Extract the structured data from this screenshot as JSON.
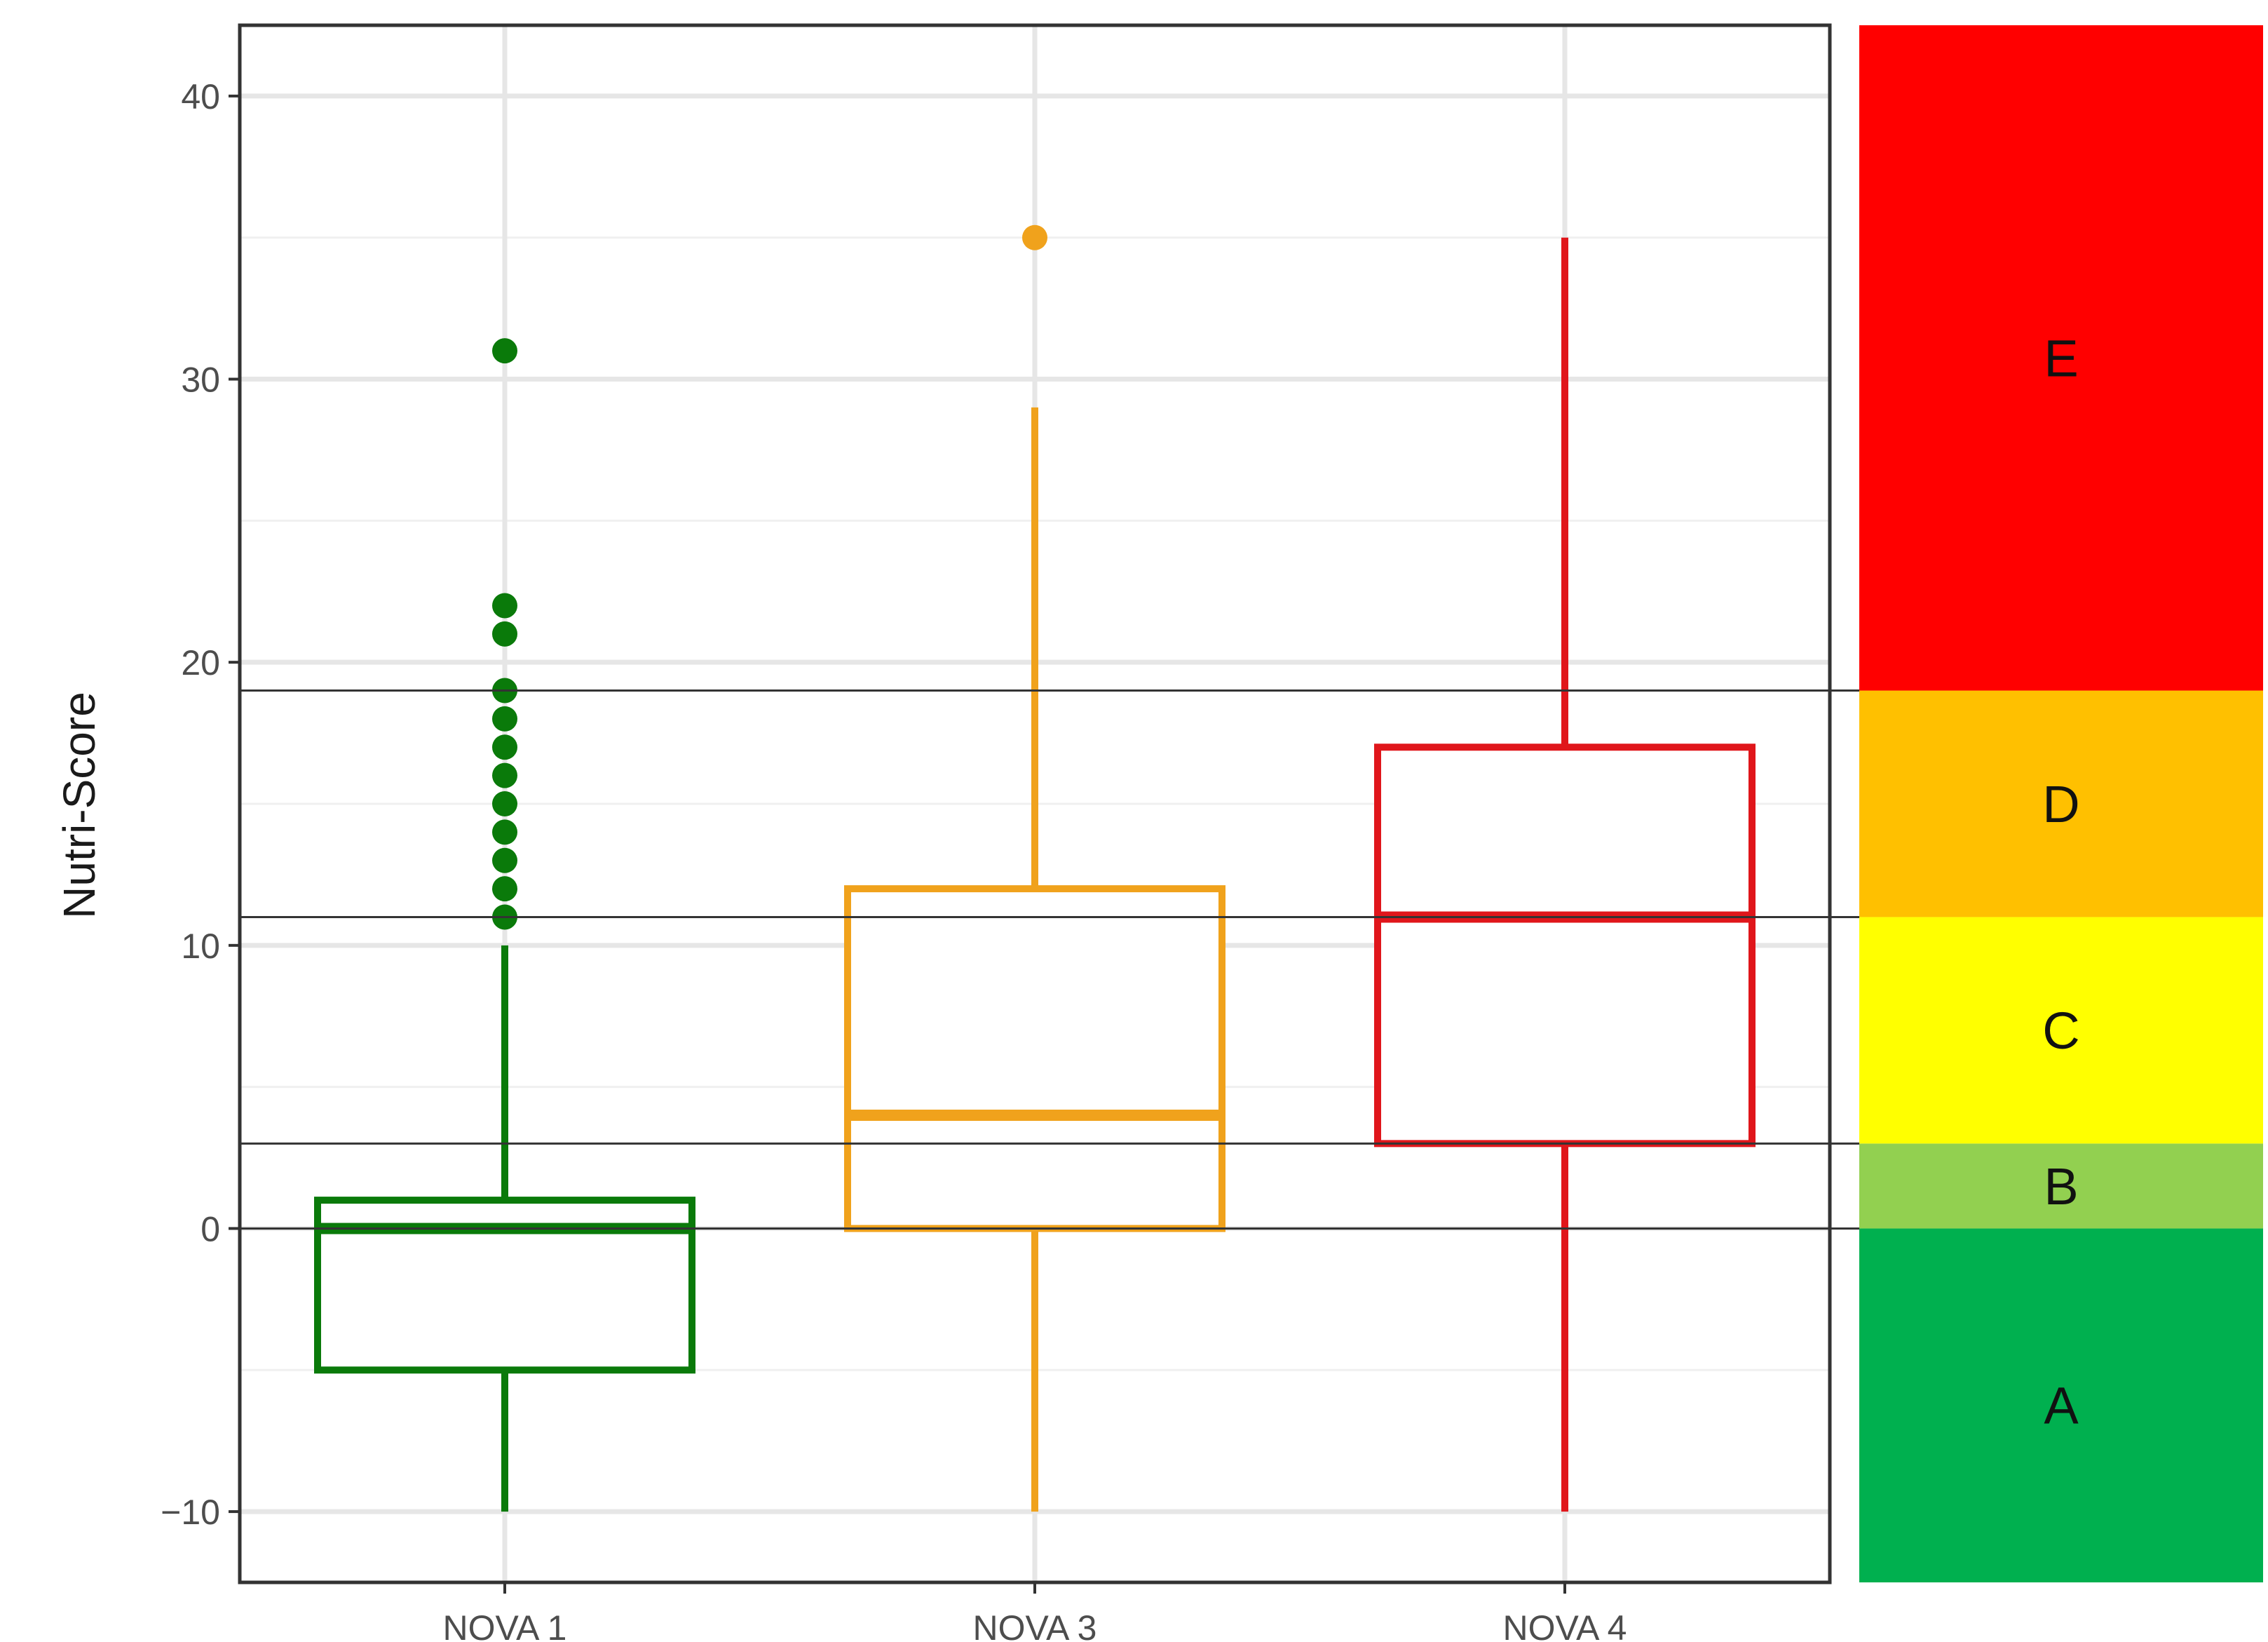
{
  "chart_data": {
    "type": "box",
    "ylabel": "Nutri-Score",
    "xlabel": "",
    "title": "",
    "ylim": [
      -12.5,
      42.5
    ],
    "yticks": [
      -10,
      0,
      10,
      20,
      30,
      40
    ],
    "ytick_labels": [
      "−10",
      "0",
      "10",
      "20",
      "30",
      "40"
    ],
    "grid": true,
    "categories": [
      "NOVA 1",
      "NOVA 3",
      "NOVA 4"
    ],
    "boxes": [
      {
        "category": "NOVA 1",
        "color": "#0a7a0a",
        "whisker_low": -10,
        "q1": -5,
        "median": 0,
        "q3": 1,
        "whisker_high": 10,
        "outliers": [
          11,
          12,
          13,
          14,
          15,
          16,
          17,
          18,
          19,
          21,
          22,
          31
        ]
      },
      {
        "category": "NOVA 3",
        "color": "#f0a21c",
        "whisker_low": -10,
        "q1": 0,
        "median": 4,
        "q3": 12,
        "whisker_high": 29,
        "outliers": [
          35
        ]
      },
      {
        "category": "NOVA 4",
        "color": "#e0161b",
        "whisker_low": -10,
        "q1": 3,
        "median": 11,
        "q3": 17,
        "whisker_high": 35,
        "outliers": []
      }
    ],
    "reference_lines": [
      0,
      3,
      11,
      19
    ],
    "bands": [
      {
        "label": "A",
        "from": -12.5,
        "to": 0,
        "color": "#00b04f"
      },
      {
        "label": "B",
        "from": 0,
        "to": 3,
        "color": "#92d050"
      },
      {
        "label": "C",
        "from": 3,
        "to": 11,
        "color": "#ffff00"
      },
      {
        "label": "D",
        "from": 11,
        "to": 19,
        "color": "#ffc000"
      },
      {
        "label": "E",
        "from": 19,
        "to": 42.5,
        "color": "#ff0000"
      }
    ]
  }
}
